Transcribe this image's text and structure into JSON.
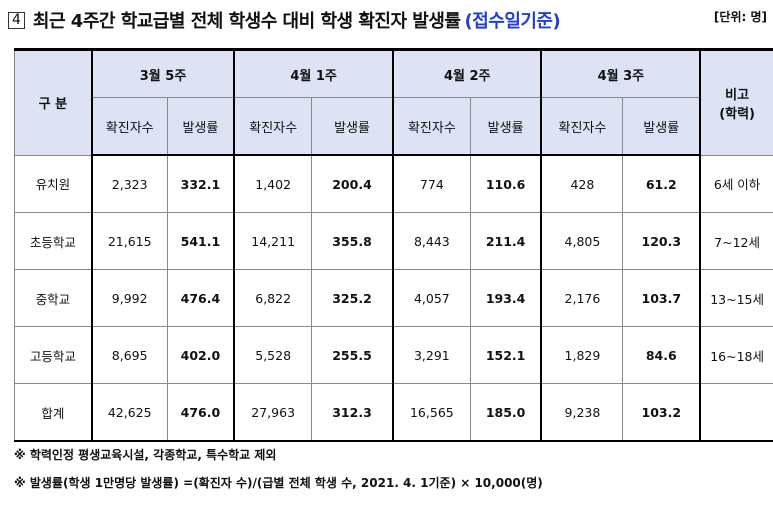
{
  "header": {
    "section_number": "4",
    "title": "최근 4주간 학교급별 전체 학생수 대비 학생 확진자 발생률",
    "title_accent": "(접수일기준)",
    "unit": "[단위: 명]"
  },
  "table": {
    "category_header": "구 분",
    "remark_header": "비고\n(학력)",
    "weeks": [
      "3월 5주",
      "4월 1주",
      "4월 2주",
      "4월 3주"
    ],
    "sub_headers": [
      "확진자수",
      "발생률"
    ],
    "rows": [
      {
        "label": "유치원",
        "cells": [
          "2,323",
          "332.1",
          "1,402",
          "200.4",
          "774",
          "110.6",
          "428",
          "61.2"
        ],
        "remark": "6세 이하"
      },
      {
        "label": "초등학교",
        "cells": [
          "21,615",
          "541.1",
          "14,211",
          "355.8",
          "8,443",
          "211.4",
          "4,805",
          "120.3"
        ],
        "remark": "7~12세"
      },
      {
        "label": "중학교",
        "cells": [
          "9,992",
          "476.4",
          "6,822",
          "325.2",
          "4,057",
          "193.4",
          "2,176",
          "103.7"
        ],
        "remark": "13~15세"
      },
      {
        "label": "고등학교",
        "cells": [
          "8,695",
          "402.0",
          "5,528",
          "255.5",
          "3,291",
          "152.1",
          "1,829",
          "84.6"
        ],
        "remark": "16~18세"
      },
      {
        "label": "합계",
        "cells": [
          "42,625",
          "476.0",
          "27,963",
          "312.3",
          "16,565",
          "185.0",
          "9,238",
          "103.2"
        ],
        "remark": ""
      }
    ]
  },
  "footnotes": [
    "※ 학력인정 평생교육시설, 각종학교, 특수학교 제외",
    "※ 발생률(학생 1만명당 발생률) =(확진자 수)/(급별 전체 학생 수, 2021. 4. 1기준) × 10,000(명)"
  ],
  "colors": {
    "header_bg": "#dde2f5",
    "accent": "#1f3fd6"
  }
}
